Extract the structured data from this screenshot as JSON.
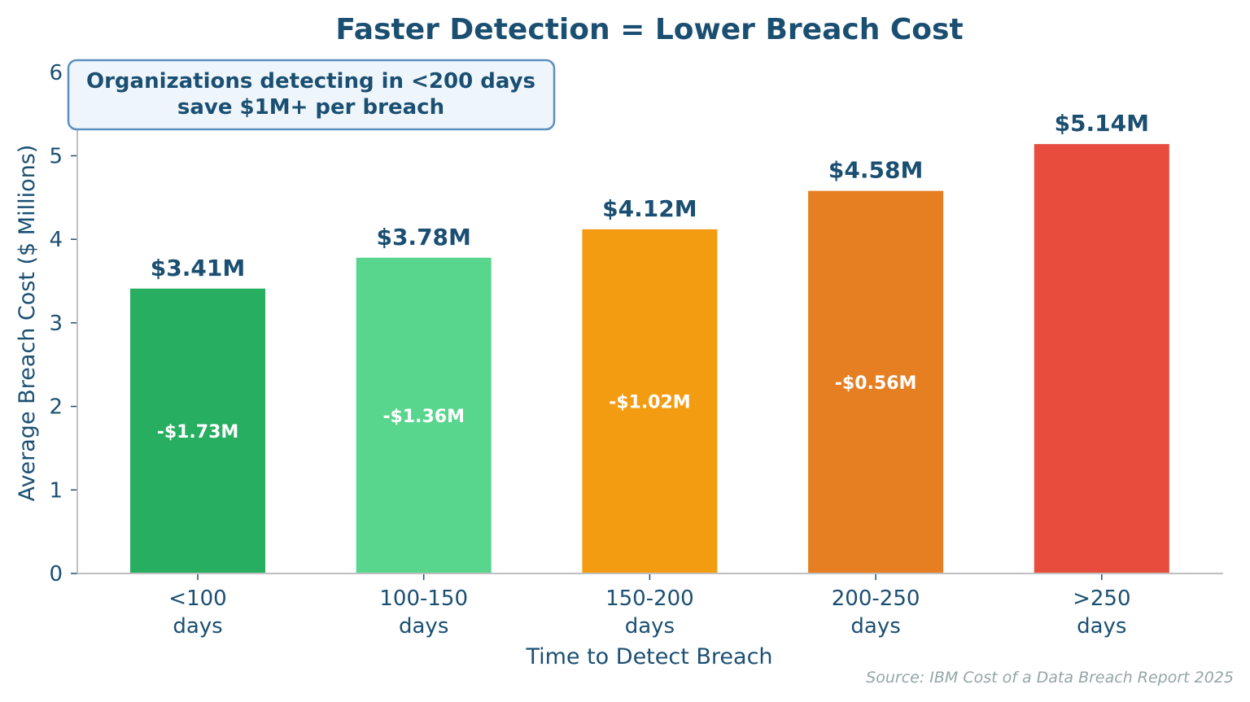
{
  "chart_data": {
    "type": "bar",
    "title": "Faster Detection = Lower Breach Cost",
    "xlabel": "Time to Detect Breach",
    "ylabel": "Average Breach Cost ($ Millions)",
    "ylim": [
      0,
      6
    ],
    "yticks": [
      "0",
      "1",
      "2",
      "3",
      "4",
      "5",
      "6"
    ],
    "categories": [
      [
        "<100",
        "days"
      ],
      [
        "100-150",
        "days"
      ],
      [
        "150-200",
        "days"
      ],
      [
        "200-250",
        "days"
      ],
      [
        ">250",
        "days"
      ]
    ],
    "values": [
      3.41,
      3.78,
      4.12,
      4.58,
      5.14
    ],
    "value_labels": [
      "$3.41M",
      "$3.78M",
      "$4.12M",
      "$4.58M",
      "$5.14M"
    ],
    "savings_labels": [
      "-$1.73M",
      "-$1.36M",
      "-$1.02M",
      "-$0.56M"
    ],
    "colors": [
      "#27ae60",
      "#58d68d",
      "#f39c12",
      "#e67e22",
      "#e74c3c"
    ],
    "annotation": [
      "Organizations detecting in <200 days",
      "save $1M+ per breach"
    ],
    "source": "Source: IBM Cost of a Data Breach Report 2025",
    "grid": false,
    "legend": "none"
  },
  "style": {
    "text_color": "#1b4f72",
    "axis_color": "#c0c0c0",
    "annotation_fill": "#eef5fb",
    "annotation_border": "#5b8fc0",
    "source_color": "#95a5a6"
  }
}
